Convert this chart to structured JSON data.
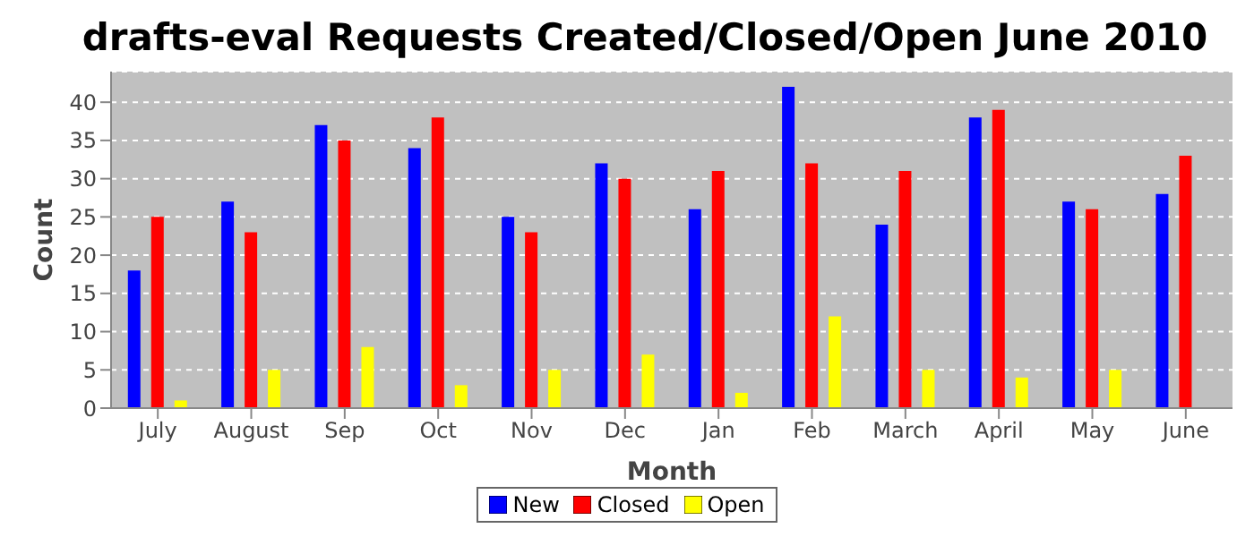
{
  "chart_data": {
    "type": "bar",
    "title": "drafts-eval Requests Created/Closed/Open June 2010",
    "xlabel": "Month",
    "ylabel": "Count",
    "categories": [
      "July",
      "August",
      "Sep",
      "Oct",
      "Nov",
      "Dec",
      "Jan",
      "Feb",
      "March",
      "April",
      "May",
      "June"
    ],
    "series": [
      {
        "name": "New",
        "color": "#0000ff",
        "values": [
          18,
          27,
          37,
          34,
          25,
          32,
          26,
          42,
          24,
          38,
          27,
          28
        ]
      },
      {
        "name": "Closed",
        "color": "#ff0000",
        "values": [
          25,
          23,
          35,
          38,
          23,
          30,
          31,
          32,
          31,
          39,
          26,
          33
        ]
      },
      {
        "name": "Open",
        "color": "#ffff00",
        "values": [
          1,
          5,
          8,
          3,
          5,
          7,
          2,
          12,
          5,
          4,
          5,
          0
        ]
      }
    ],
    "ylim": [
      0,
      44
    ],
    "yticks": [
      0,
      5,
      10,
      15,
      20,
      25,
      30,
      35,
      40
    ],
    "grid": "y",
    "legend": "bottom"
  }
}
